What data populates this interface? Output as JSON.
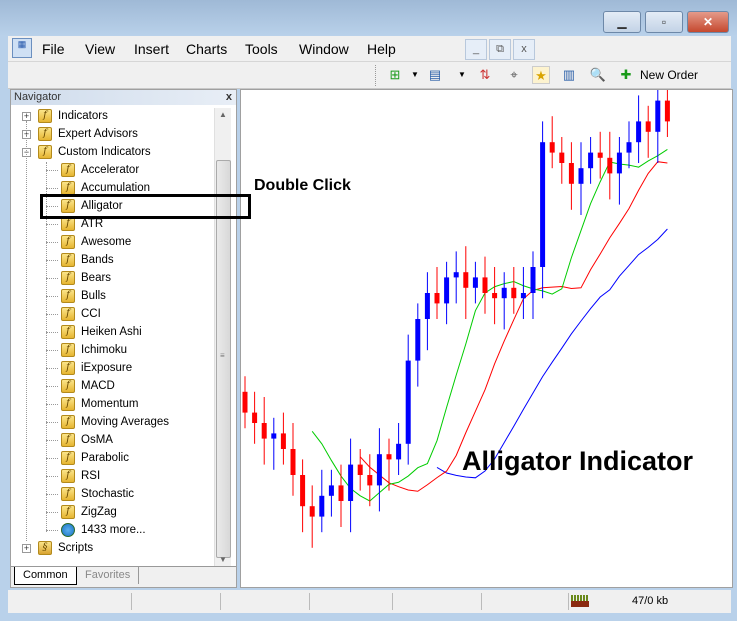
{
  "window": {
    "minimize_icon": "minimize-icon",
    "maximize_icon": "restore-icon",
    "close_icon": "close-icon"
  },
  "menu": [
    "File",
    "View",
    "Insert",
    "Charts",
    "Tools",
    "Window",
    "Help"
  ],
  "toolbar": {
    "new_order_label": "New Order"
  },
  "navigator": {
    "title": "Navigator",
    "close": "x",
    "roots": [
      {
        "label": "Indicators"
      },
      {
        "label": "Expert Advisors"
      },
      {
        "label": "Custom Indicators"
      }
    ],
    "custom_indicators": [
      "Accelerator",
      "Accumulation",
      "Alligator",
      "ATR",
      "Awesome",
      "Bands",
      "Bears",
      "Bulls",
      "CCI",
      "Heiken Ashi",
      "Ichimoku",
      "iExposure",
      "MACD",
      "Momentum",
      "Moving Averages",
      "OsMA",
      "Parabolic",
      "RSI",
      "Stochastic",
      "ZigZag",
      "1433 more..."
    ],
    "scripts": "Scripts",
    "tabs": [
      "Common",
      "Favorites"
    ],
    "active_tab": "Common",
    "selected": "Alligator"
  },
  "annotations": {
    "double_click": "Double Click",
    "title": "Alligator Indicator"
  },
  "chart": {
    "colors": {
      "bull": "#0000ff",
      "bear": "#ff0000",
      "jaw": "#0000ff",
      "teeth": "#ff0000",
      "lips": "#00cc00"
    },
    "closes": [
      32,
      30,
      27,
      28,
      25,
      20,
      14,
      12,
      16,
      18,
      15,
      22,
      20,
      18,
      24,
      23,
      26,
      42,
      50,
      55,
      53,
      58,
      59,
      56,
      58,
      55,
      54,
      56,
      54,
      55,
      60,
      84,
      82,
      80,
      76,
      79,
      82,
      81,
      78,
      82,
      84,
      88,
      86,
      92,
      88
    ]
  },
  "status": {
    "traffic": "47/0 kb"
  }
}
